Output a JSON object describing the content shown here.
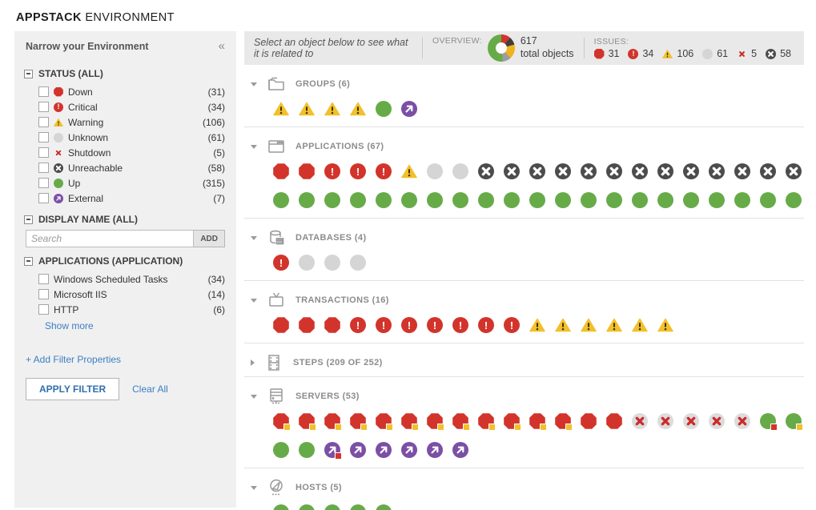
{
  "page": {
    "brand": "APPSTACK",
    "brand_suffix": "ENVIRONMENT"
  },
  "sidebar": {
    "title": "Narrow your Environment",
    "status_section": {
      "title": "STATUS (ALL)",
      "items": [
        {
          "label": "Down",
          "count": "(31)",
          "status": "down"
        },
        {
          "label": "Critical",
          "count": "(34)",
          "status": "critical"
        },
        {
          "label": "Warning",
          "count": "(106)",
          "status": "warning"
        },
        {
          "label": "Unknown",
          "count": "(61)",
          "status": "unknown"
        },
        {
          "label": "Shutdown",
          "count": "(5)",
          "status": "shutdown"
        },
        {
          "label": "Unreachable",
          "count": "(58)",
          "status": "unreachable"
        },
        {
          "label": "Up",
          "count": "(315)",
          "status": "up"
        },
        {
          "label": "External",
          "count": "(7)",
          "status": "external"
        }
      ]
    },
    "display_name_section": {
      "title": "DISPLAY NAME (ALL)",
      "search_placeholder": "Search",
      "add_button": "ADD"
    },
    "applications_section": {
      "title": "APPLICATIONS (APPLICATION)",
      "items": [
        {
          "label": "Windows Scheduled Tasks",
          "count": "(34)"
        },
        {
          "label": "Microsoft IIS",
          "count": "(14)"
        },
        {
          "label": "HTTP",
          "count": "(6)"
        }
      ],
      "show_more": "Show more"
    },
    "add_filter_link": "+ Add Filter Properties",
    "apply_button": "APPLY FILTER",
    "clear_all": "Clear All"
  },
  "main": {
    "hint": "Select an object below to see what it is related to",
    "overview": {
      "label": "OVERVIEW:",
      "total": "617",
      "caption": "total objects",
      "donut_slices": [
        {
          "name": "down-critical",
          "color": "#d2342c",
          "deg": 41
        },
        {
          "name": "unreachable",
          "color": "#3f3f3f",
          "deg": 34
        },
        {
          "name": "warning",
          "color": "#efb320",
          "deg": 62
        },
        {
          "name": "unknown",
          "color": "#9d9d9d",
          "deg": 36
        },
        {
          "name": "up",
          "color": "#67ab49",
          "deg": 187
        }
      ]
    },
    "issues": {
      "label": "ISSUES:",
      "items": [
        {
          "status": "down",
          "count": "31"
        },
        {
          "status": "critical",
          "count": "34"
        },
        {
          "status": "warning",
          "count": "106"
        },
        {
          "status": "unknown",
          "count": "61"
        },
        {
          "status": "shutdown",
          "count": "5"
        },
        {
          "status": "unreachable",
          "count": "58"
        }
      ]
    },
    "sections": [
      {
        "id": "groups",
        "title": "GROUPS (6)",
        "icon": "folder-icon",
        "expanded": true,
        "rows": [
          [
            {
              "t": "warning",
              "n": 4
            },
            {
              "t": "up",
              "n": 1
            },
            {
              "t": "external",
              "n": 1
            }
          ]
        ]
      },
      {
        "id": "applications",
        "title": "APPLICATIONS (67)",
        "icon": "application-icon",
        "expanded": true,
        "rows": [
          [
            {
              "t": "down",
              "n": 2
            },
            {
              "t": "critical",
              "n": 3
            },
            {
              "t": "warning",
              "n": 1
            },
            {
              "t": "unknown",
              "n": 2
            },
            {
              "t": "unreachable",
              "n": 13
            }
          ],
          [
            {
              "t": "up",
              "n": 21
            }
          ]
        ]
      },
      {
        "id": "databases",
        "title": "DATABASES (4)",
        "icon": "database-icon",
        "expanded": true,
        "rows": [
          [
            {
              "t": "critical",
              "n": 1
            },
            {
              "t": "unknown",
              "n": 3
            }
          ]
        ]
      },
      {
        "id": "transactions",
        "title": "TRANSACTIONS (16)",
        "icon": "transaction-icon",
        "expanded": true,
        "rows": [
          [
            {
              "t": "down",
              "n": 3
            },
            {
              "t": "critical",
              "n": 7
            },
            {
              "t": "warning",
              "n": 6
            }
          ]
        ]
      },
      {
        "id": "steps",
        "title": "STEPS (209 OF 252)",
        "icon": "steps-icon",
        "expanded": false,
        "rows": []
      },
      {
        "id": "servers",
        "title": "SERVERS (53)",
        "icon": "server-icon",
        "expanded": true,
        "rows": [
          [
            {
              "t": "down-badge-warning",
              "n": 12
            },
            {
              "t": "down",
              "n": 2
            },
            {
              "t": "shutdown-circle",
              "n": 5
            },
            {
              "t": "up-badge-critical",
              "n": 1
            },
            {
              "t": "up-badge-warning",
              "n": 1
            }
          ],
          [
            {
              "t": "up",
              "n": 2
            },
            {
              "t": "external-badge-critical",
              "n": 1
            },
            {
              "t": "external",
              "n": 5
            }
          ]
        ]
      },
      {
        "id": "hosts",
        "title": "HOSTS (5)",
        "icon": "host-icon",
        "expanded": true,
        "rows": [
          [
            {
              "t": "up",
              "n": 5
            }
          ]
        ]
      }
    ]
  },
  "colors": {
    "up": "#67ab49",
    "down": "#d2342c",
    "critical": "#d2342c",
    "warning": "#f2c02a",
    "unknown": "#d5d5d5",
    "unreachable": "#4c4c4c",
    "shutdown_x": "#cc2a2a",
    "shutdown_circle_bg": "#dcdcdc",
    "external": "#7b4fa6",
    "link": "#3b7fc4"
  }
}
